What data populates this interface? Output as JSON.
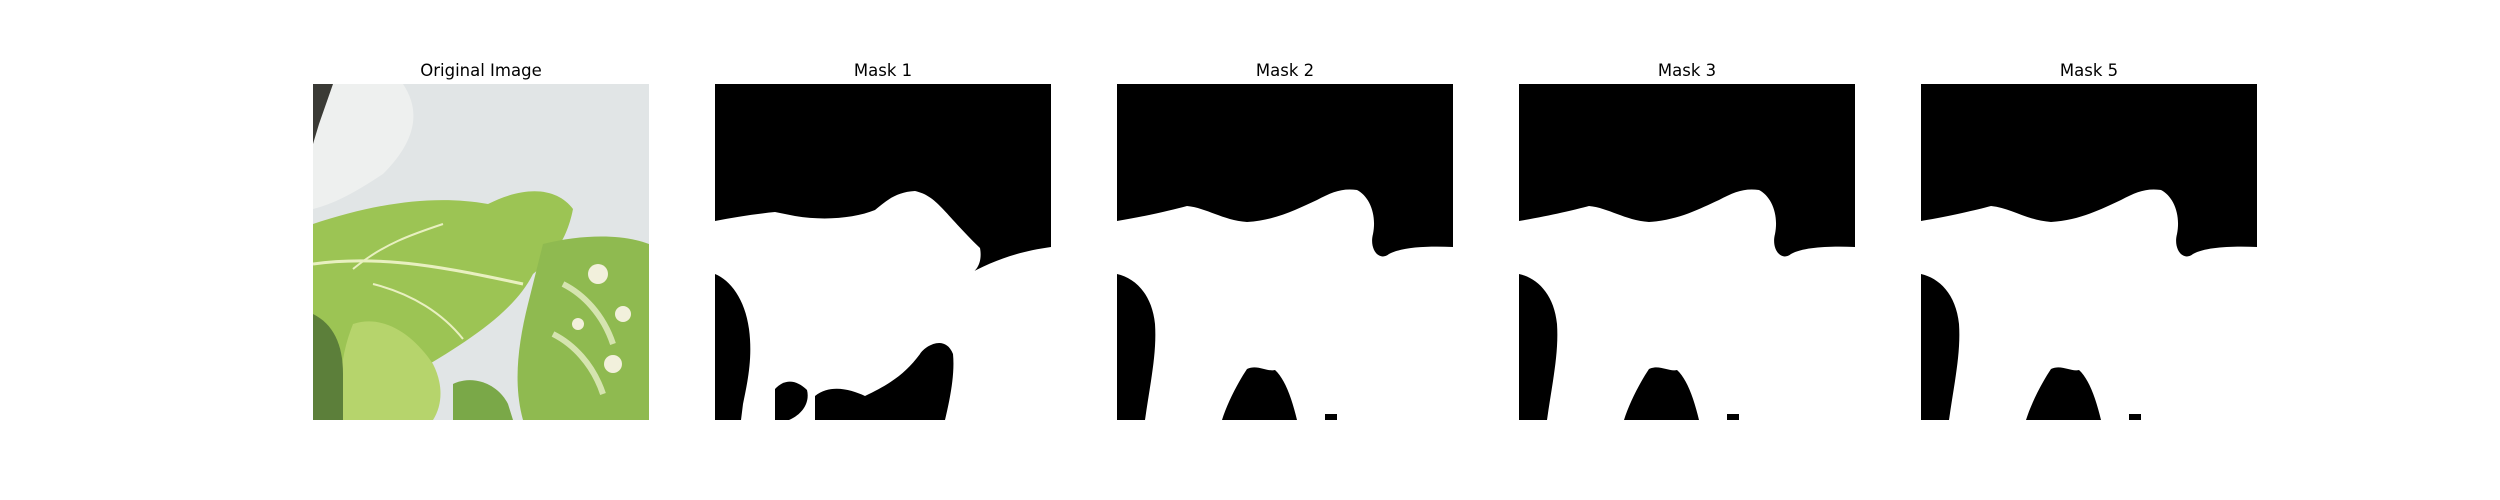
{
  "figure": {
    "panels": [
      {
        "title": "Original Image",
        "kind": "photo"
      },
      {
        "title": "Mask 1",
        "kind": "mask"
      },
      {
        "title": "Mask 2",
        "kind": "mask"
      },
      {
        "title": "Mask 3",
        "kind": "mask"
      },
      {
        "title": "Mask 5",
        "kind": "mask"
      }
    ],
    "colors": {
      "mask_background": "#000000",
      "mask_foreground": "#ffffff",
      "photo_backdrop": "#dfe3e4",
      "leaf_green": "#8db84a",
      "leaf_light": "#cfe08a",
      "leaf_dark": "#5d8a2e"
    }
  }
}
